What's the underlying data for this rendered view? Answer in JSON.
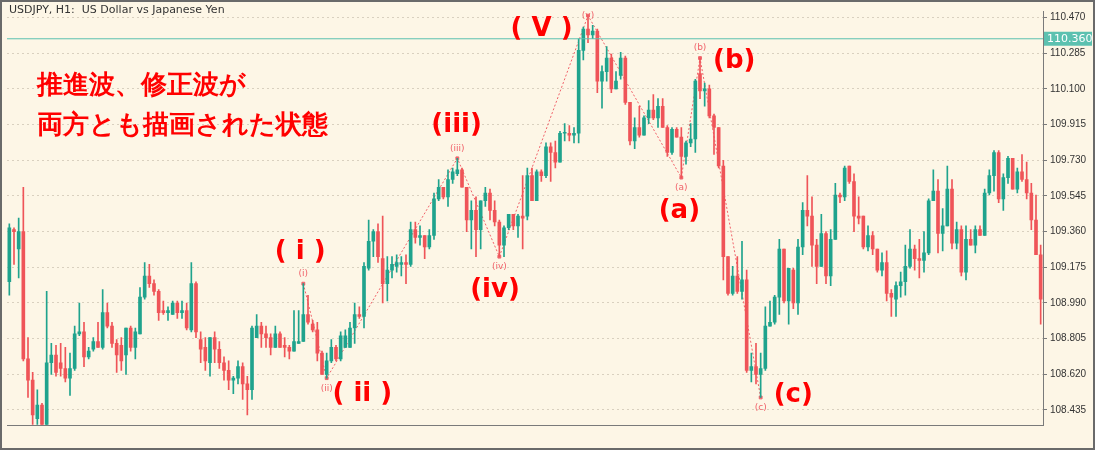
{
  "chart_data": {
    "type": "candlestick",
    "title": "USDJPY, H1:  US Dollar vs Japanese Yen",
    "subtitle": "推進波、修正波が両方とも描画された状態",
    "categories": [
      null,
      null,
      null,
      null,
      null,
      null,
      null,
      null,
      null,
      null,
      null,
      null,
      null,
      null,
      null,
      null,
      null,
      null,
      null,
      null,
      null,
      null,
      null,
      null,
      null,
      null,
      null,
      null,
      null,
      null,
      null,
      null,
      null,
      null,
      null,
      null,
      null,
      null,
      null,
      null,
      null,
      null,
      null,
      null,
      null,
      null,
      null,
      null,
      null,
      null,
      null,
      null,
      null,
      null,
      null,
      null,
      null,
      null,
      null,
      null,
      null,
      null,
      null,
      null,
      null,
      null,
      null,
      null,
      null,
      null,
      null,
      null,
      null,
      null,
      null,
      null,
      null,
      null,
      null,
      null,
      null,
      null,
      null,
      null,
      null,
      null,
      null,
      null,
      null,
      null,
      null,
      null,
      null,
      null,
      null,
      null,
      null,
      null,
      null,
      null,
      null,
      null,
      null,
      null,
      null,
      null,
      null,
      null,
      null,
      null,
      null,
      null,
      null,
      null,
      null,
      null,
      null,
      null,
      null,
      null,
      null,
      null,
      null,
      null,
      null,
      null,
      null,
      null,
      null,
      null,
      null,
      null,
      null,
      null,
      null,
      null,
      null,
      null,
      null,
      null,
      null,
      null,
      null,
      null,
      null,
      null,
      null,
      null,
      null,
      null,
      null,
      null,
      null,
      null,
      null,
      null,
      null,
      null,
      null,
      null,
      null,
      null,
      null,
      null,
      null,
      null,
      null,
      null,
      null,
      null,
      null,
      null,
      null,
      null,
      null,
      null,
      null,
      null,
      null,
      null,
      null,
      null,
      null,
      null,
      null,
      null,
      null,
      null,
      null,
      null,
      null,
      null,
      null,
      null,
      null,
      null,
      null,
      null,
      null,
      null,
      null,
      null,
      null,
      null,
      null,
      null,
      null,
      null,
      null,
      null,
      null,
      null,
      null,
      null,
      null,
      null,
      null,
      null,
      null,
      null,
      null,
      null
    ],
    "ohlc": [
      [
        109.1,
        109.4,
        109.03,
        109.38
      ],
      [
        109.37,
        109.38,
        109.19,
        109.36
      ],
      [
        109.27,
        109.43,
        109.12,
        109.36
      ],
      [
        109.36,
        109.59,
        108.69,
        108.7
      ],
      [
        108.7,
        108.81,
        108.5,
        108.59
      ],
      [
        108.59,
        108.63,
        108.36,
        108.41
      ],
      [
        108.39,
        108.54,
        108.36,
        108.46
      ],
      [
        108.46,
        108.47,
        108.36,
        108.36
      ],
      [
        108.36,
        109.05,
        108.36,
        108.68
      ],
      [
        108.68,
        108.78,
        108.62,
        108.72
      ],
      [
        108.72,
        108.77,
        108.61,
        108.63
      ],
      [
        108.68,
        108.78,
        108.61,
        108.65
      ],
      [
        108.65,
        108.76,
        108.58,
        108.6
      ],
      [
        108.6,
        108.73,
        108.51,
        108.65
      ],
      [
        108.65,
        108.87,
        108.64,
        108.83
      ],
      [
        108.83,
        108.99,
        108.82,
        108.84
      ],
      [
        108.84,
        108.89,
        108.66,
        108.71
      ],
      [
        108.71,
        108.76,
        108.7,
        108.74
      ],
      [
        108.75,
        108.81,
        108.74,
        108.79
      ],
      [
        108.79,
        108.89,
        108.76,
        108.76
      ],
      [
        108.76,
        109.06,
        108.75,
        108.94
      ],
      [
        108.94,
        108.99,
        108.86,
        108.87
      ],
      [
        108.87,
        108.89,
        108.76,
        108.78
      ],
      [
        108.78,
        108.8,
        108.63,
        108.72
      ],
      [
        108.77,
        108.81,
        108.64,
        108.69
      ],
      [
        108.72,
        108.86,
        108.62,
        108.86
      ],
      [
        108.86,
        108.87,
        108.74,
        108.76
      ],
      [
        108.76,
        108.86,
        108.7,
        108.84
      ],
      [
        108.83,
        109.07,
        108.83,
        109.02
      ],
      [
        109.02,
        109.2,
        109.01,
        109.13
      ],
      [
        109.13,
        109.19,
        109.07,
        109.09
      ],
      [
        109.09,
        109.11,
        109.03,
        109.05
      ],
      [
        109.05,
        109.06,
        108.9,
        108.94
      ],
      [
        108.95,
        109.0,
        108.93,
        108.94
      ],
      [
        108.94,
        108.97,
        108.9,
        108.95
      ],
      [
        108.93,
        109.0,
        108.93,
        108.99
      ],
      [
        108.99,
        109.0,
        108.91,
        108.94
      ],
      [
        108.94,
        109.0,
        108.91,
        108.95
      ],
      [
        108.95,
        108.99,
        108.85,
        108.86
      ],
      [
        108.85,
        109.2,
        108.84,
        109.09
      ],
      [
        109.09,
        109.1,
        108.81,
        108.84
      ],
      [
        108.8,
        108.84,
        108.68,
        108.75
      ],
      [
        108.76,
        108.81,
        108.64,
        108.69
      ],
      [
        108.68,
        108.81,
        108.61,
        108.81
      ],
      [
        108.81,
        108.84,
        108.68,
        108.75
      ],
      [
        108.75,
        108.79,
        108.65,
        108.68
      ],
      [
        108.68,
        108.71,
        108.59,
        108.64
      ],
      [
        108.64,
        108.69,
        108.54,
        108.59
      ],
      [
        108.59,
        108.61,
        108.52,
        108.6
      ],
      [
        108.6,
        108.69,
        108.57,
        108.66
      ],
      [
        108.66,
        108.68,
        108.49,
        108.57
      ],
      [
        108.57,
        108.61,
        108.41,
        108.54
      ],
      [
        108.54,
        108.87,
        108.49,
        108.86
      ],
      [
        108.81,
        108.93,
        108.81,
        108.87
      ],
      [
        108.87,
        108.89,
        108.76,
        108.83
      ],
      [
        108.83,
        108.87,
        108.76,
        108.81
      ],
      [
        108.81,
        108.83,
        108.72,
        108.76
      ],
      [
        108.76,
        108.87,
        108.76,
        108.83
      ],
      [
        108.83,
        108.84,
        108.76,
        108.76
      ],
      [
        108.77,
        108.81,
        108.71,
        108.76
      ],
      [
        108.76,
        108.77,
        108.7,
        108.74
      ],
      [
        108.74,
        108.95,
        108.74,
        108.79
      ],
      [
        108.78,
        108.95,
        108.78,
        108.79
      ],
      [
        108.79,
        109.09,
        108.79,
        108.93
      ],
      [
        108.93,
        109.03,
        108.88,
        108.89
      ],
      [
        108.88,
        108.9,
        108.84,
        108.85
      ],
      [
        108.85,
        108.89,
        108.69,
        108.73
      ],
      [
        108.73,
        108.74,
        108.62,
        108.62
      ],
      [
        108.62,
        108.73,
        108.6,
        108.69
      ],
      [
        108.69,
        108.8,
        108.68,
        108.76
      ],
      [
        108.76,
        108.77,
        108.69,
        108.7
      ],
      [
        108.7,
        108.84,
        108.69,
        108.82
      ],
      [
        108.76,
        108.85,
        108.76,
        108.82
      ],
      [
        108.76,
        108.89,
        108.76,
        108.86
      ],
      [
        108.86,
        108.99,
        108.78,
        108.93
      ],
      [
        108.93,
        108.97,
        108.91,
        108.92
      ],
      [
        108.92,
        109.2,
        108.86,
        109.18
      ],
      [
        109.17,
        109.42,
        109.16,
        109.31
      ],
      [
        109.31,
        109.37,
        109.23,
        109.36
      ],
      [
        109.36,
        109.4,
        109.2,
        109.23
      ],
      [
        109.22,
        109.44,
        108.99,
        109.09
      ],
      [
        109.09,
        109.23,
        109.0,
        109.16
      ],
      [
        109.16,
        109.23,
        109.12,
        109.19
      ],
      [
        109.18,
        109.24,
        109.15,
        109.2
      ],
      [
        109.19,
        109.23,
        109.13,
        109.2
      ],
      [
        109.2,
        109.24,
        109.09,
        109.19
      ],
      [
        109.19,
        109.41,
        109.18,
        109.37
      ],
      [
        109.37,
        109.41,
        109.3,
        109.33
      ],
      [
        109.33,
        109.39,
        109.29,
        109.34
      ],
      [
        109.34,
        109.34,
        109.22,
        109.28
      ],
      [
        109.28,
        109.37,
        109.27,
        109.34
      ],
      [
        109.34,
        109.56,
        109.32,
        109.53
      ],
      [
        109.53,
        109.63,
        109.52,
        109.59
      ],
      [
        109.59,
        109.59,
        109.53,
        109.54
      ],
      [
        109.54,
        109.68,
        109.49,
        109.63
      ],
      [
        109.63,
        109.69,
        109.61,
        109.67
      ],
      [
        109.66,
        109.74,
        109.65,
        109.68
      ],
      [
        109.68,
        109.69,
        109.59,
        109.59
      ],
      [
        109.59,
        109.59,
        109.36,
        109.42
      ],
      [
        109.42,
        109.52,
        109.27,
        109.47
      ],
      [
        109.47,
        109.54,
        109.23,
        109.37
      ],
      [
        109.37,
        109.52,
        109.27,
        109.52
      ],
      [
        109.52,
        109.59,
        109.49,
        109.56
      ],
      [
        109.56,
        109.58,
        109.42,
        109.47
      ],
      [
        109.47,
        109.52,
        109.39,
        109.41
      ],
      [
        109.41,
        109.42,
        109.23,
        109.29
      ],
      [
        109.29,
        109.39,
        109.23,
        109.38
      ],
      [
        109.38,
        109.45,
        109.37,
        109.45
      ],
      [
        109.45,
        109.45,
        109.37,
        109.39
      ],
      [
        109.39,
        109.45,
        109.33,
        109.44
      ],
      [
        109.44,
        109.65,
        109.27,
        109.43
      ],
      [
        109.44,
        109.69,
        109.42,
        109.65
      ],
      [
        109.65,
        109.69,
        109.52,
        109.52
      ],
      [
        109.52,
        109.68,
        109.52,
        109.67
      ],
      [
        109.67,
        109.68,
        109.62,
        109.65
      ],
      [
        109.65,
        109.82,
        109.64,
        109.8
      ],
      [
        109.8,
        109.82,
        109.62,
        109.77
      ],
      [
        109.77,
        109.83,
        109.69,
        109.72
      ],
      [
        109.72,
        109.88,
        109.72,
        109.87
      ],
      [
        109.87,
        109.92,
        109.83,
        109.87
      ],
      [
        109.87,
        109.91,
        109.83,
        109.86
      ],
      [
        109.86,
        109.9,
        109.82,
        109.87
      ],
      [
        109.87,
        110.36,
        109.82,
        110.3
      ],
      [
        110.3,
        110.42,
        110.25,
        110.41
      ],
      [
        110.41,
        110.48,
        110.34,
        110.38
      ],
      [
        110.38,
        110.43,
        110.36,
        110.4
      ],
      [
        110.4,
        110.41,
        110.08,
        110.14
      ],
      [
        110.14,
        110.22,
        110.0,
        110.19
      ],
      [
        110.19,
        110.32,
        110.14,
        110.26
      ],
      [
        110.26,
        110.28,
        110.08,
        110.1
      ],
      [
        110.1,
        110.19,
        110.1,
        110.14
      ],
      [
        110.17,
        110.29,
        110.15,
        110.26
      ],
      [
        110.26,
        110.27,
        110.02,
        110.03
      ],
      [
        110.03,
        110.03,
        109.81,
        109.83
      ],
      [
        109.83,
        109.95,
        109.79,
        109.9
      ],
      [
        109.9,
        110.01,
        109.85,
        109.86
      ],
      [
        109.86,
        109.96,
        109.86,
        109.95
      ],
      [
        109.95,
        110.04,
        109.92,
        109.99
      ],
      [
        109.99,
        110.07,
        109.94,
        109.95
      ],
      [
        109.95,
        110.05,
        109.9,
        110.01
      ],
      [
        110.01,
        110.05,
        109.9,
        109.9
      ],
      [
        109.9,
        109.91,
        109.75,
        109.77
      ],
      [
        109.77,
        109.9,
        109.76,
        109.89
      ],
      [
        109.89,
        109.9,
        109.85,
        109.85
      ],
      [
        109.85,
        109.9,
        109.64,
        109.75
      ],
      [
        109.75,
        109.83,
        109.71,
        109.82
      ],
      [
        109.82,
        109.92,
        109.8,
        109.84
      ],
      [
        109.84,
        110.15,
        109.77,
        110.14
      ],
      [
        110.18,
        110.26,
        110.05,
        110.09
      ],
      [
        110.09,
        110.13,
        110.01,
        110.1
      ],
      [
        110.1,
        110.12,
        109.95,
        109.96
      ],
      [
        109.96,
        109.97,
        109.76,
        109.9
      ],
      [
        109.9,
        109.9,
        109.69,
        109.7
      ],
      [
        109.7,
        109.73,
        109.11,
        109.23
      ],
      [
        109.23,
        109.23,
        109.03,
        109.04
      ],
      [
        109.04,
        109.18,
        109.03,
        109.13
      ],
      [
        109.13,
        109.23,
        109.04,
        109.05
      ],
      [
        109.05,
        109.31,
        109.01,
        109.11
      ],
      [
        109.11,
        109.16,
        108.63,
        108.64
      ],
      [
        108.64,
        108.73,
        108.58,
        108.66
      ],
      [
        108.66,
        108.78,
        108.57,
        108.62
      ],
      [
        108.62,
        108.73,
        108.5,
        108.65
      ],
      [
        108.65,
        108.97,
        108.64,
        108.87
      ],
      [
        108.87,
        109.0,
        108.87,
        108.89
      ],
      [
        108.89,
        109.03,
        108.88,
        109.02
      ],
      [
        109.02,
        109.32,
        108.93,
        109.27
      ],
      [
        109.27,
        109.27,
        108.99,
        109.0
      ],
      [
        109.0,
        109.17,
        108.88,
        109.17
      ],
      [
        109.16,
        109.17,
        108.96,
        108.99
      ],
      [
        108.99,
        109.32,
        108.93,
        109.28
      ],
      [
        109.28,
        109.51,
        109.24,
        109.47
      ],
      [
        109.47,
        109.65,
        109.39,
        109.44
      ],
      [
        109.44,
        109.54,
        109.18,
        109.29
      ],
      [
        109.29,
        109.32,
        109.09,
        109.18
      ],
      [
        109.18,
        109.45,
        109.18,
        109.35
      ],
      [
        109.35,
        109.36,
        109.09,
        109.13
      ],
      [
        109.13,
        109.37,
        109.08,
        109.32
      ],
      [
        109.32,
        109.61,
        109.32,
        109.55
      ],
      [
        109.55,
        109.56,
        109.51,
        109.54
      ],
      [
        109.54,
        109.7,
        109.52,
        109.69
      ],
      [
        109.7,
        109.7,
        109.61,
        109.62
      ],
      [
        109.62,
        109.66,
        109.36,
        109.44
      ],
      [
        109.44,
        109.54,
        109.4,
        109.43
      ],
      [
        109.44,
        109.44,
        109.27,
        109.28
      ],
      [
        109.28,
        109.39,
        109.26,
        109.34
      ],
      [
        109.34,
        109.36,
        109.24,
        109.27
      ],
      [
        109.27,
        109.27,
        109.15,
        109.16
      ],
      [
        109.16,
        109.25,
        109.13,
        109.2
      ],
      [
        109.2,
        109.26,
        109.0,
        109.04
      ],
      [
        109.04,
        109.06,
        108.92,
        109.02
      ],
      [
        109.01,
        109.1,
        108.92,
        109.08
      ],
      [
        109.08,
        109.15,
        109.02,
        109.1
      ],
      [
        109.1,
        109.29,
        109.03,
        109.18
      ],
      [
        109.18,
        109.37,
        109.17,
        109.27
      ],
      [
        109.27,
        109.29,
        109.16,
        109.22
      ],
      [
        109.22,
        109.32,
        109.12,
        109.21
      ],
      [
        109.21,
        109.36,
        109.15,
        109.25
      ],
      [
        109.25,
        109.53,
        109.24,
        109.52
      ],
      [
        109.52,
        109.68,
        109.52,
        109.57
      ],
      [
        109.57,
        109.63,
        109.25,
        109.35
      ],
      [
        109.35,
        109.48,
        109.26,
        109.39
      ],
      [
        109.39,
        109.7,
        109.39,
        109.58
      ],
      [
        109.58,
        109.63,
        109.27,
        109.3
      ],
      [
        109.3,
        109.41,
        109.27,
        109.37
      ],
      [
        109.37,
        109.39,
        109.13,
        109.15
      ],
      [
        109.15,
        109.39,
        109.11,
        109.32
      ],
      [
        109.32,
        109.37,
        109.29,
        109.29
      ],
      [
        109.29,
        109.39,
        109.25,
        109.37
      ],
      [
        109.37,
        109.39,
        109.34,
        109.34
      ],
      [
        109.34,
        109.58,
        109.34,
        109.56
      ],
      [
        109.56,
        109.68,
        109.55,
        109.65
      ],
      [
        109.65,
        109.78,
        109.57,
        109.77
      ],
      [
        109.77,
        109.78,
        109.51,
        109.53
      ],
      [
        109.53,
        109.66,
        109.47,
        109.64
      ],
      [
        109.64,
        109.75,
        109.61,
        109.74
      ],
      [
        109.74,
        109.74,
        109.58,
        109.58
      ],
      [
        109.58,
        109.69,
        109.56,
        109.67
      ],
      [
        109.67,
        109.76,
        109.62,
        109.63
      ],
      [
        109.63,
        109.72,
        109.53,
        109.56
      ],
      [
        109.56,
        109.61,
        109.37,
        109.42
      ],
      [
        109.42,
        109.55,
        109.24,
        109.24
      ],
      [
        109.24,
        109.29,
        108.88,
        109.01
      ]
    ],
    "colors": [
      "#1fa38d",
      "#ef5458",
      "#1fa38d",
      "#ef5458",
      "#ef5458",
      "#ef5458",
      "#1fa38d",
      "#ef5458",
      "#1fa38d",
      "#1fa38d",
      "#ef5458",
      "#ef5458",
      "#ef5458",
      "#1fa38d",
      "#1fa38d",
      "#1fa38d",
      "#ef5458",
      "#1fa38d",
      "#1fa38d",
      "#ef5458",
      "#1fa38d",
      "#ef5458",
      "#ef5458",
      "#ef5458",
      "#ef5458",
      "#1fa38d",
      "#ef5458",
      "#1fa38d",
      "#1fa38d",
      "#1fa38d",
      "#ef5458",
      "#ef5458",
      "#ef5458",
      "#ef5458",
      "#1fa38d",
      "#1fa38d",
      "#ef5458",
      "#1fa38d",
      "#ef5458",
      "#1fa38d",
      "#ef5458",
      "#ef5458",
      "#ef5458",
      "#1fa38d",
      "#ef5458",
      "#ef5458",
      "#ef5458",
      "#ef5458",
      "#1fa38d",
      "#1fa38d",
      "#ef5458",
      "#ef5458",
      "#1fa38d",
      "#1fa38d",
      "#ef5458",
      "#ef5458",
      "#ef5458",
      "#1fa38d",
      "#ef5458",
      "#ef5458",
      "#ef5458",
      "#1fa38d",
      "#1fa38d",
      "#1fa38d",
      "#ef5458",
      "#ef5458",
      "#ef5458",
      "#ef5458",
      "#1fa38d",
      "#1fa38d",
      "#ef5458",
      "#1fa38d",
      "#1fa38d",
      "#1fa38d",
      "#1fa38d",
      "#ef5458",
      "#1fa38d",
      "#1fa38d",
      "#1fa38d",
      "#ef5458",
      "#ef5458",
      "#1fa38d",
      "#1fa38d",
      "#1fa38d",
      "#1fa38d",
      "#ef5458",
      "#1fa38d",
      "#ef5458",
      "#1fa38d",
      "#ef5458",
      "#1fa38d",
      "#1fa38d",
      "#1fa38d",
      "#ef5458",
      "#1fa38d",
      "#1fa38d",
      "#1fa38d",
      "#ef5458",
      "#ef5458",
      "#1fa38d",
      "#ef5458",
      "#1fa38d",
      "#1fa38d",
      "#ef5458",
      "#ef5458",
      "#ef5458",
      "#1fa38d",
      "#1fa38d",
      "#ef5458",
      "#1fa38d",
      "#ef5458",
      "#1fa38d",
      "#ef5458",
      "#1fa38d",
      "#ef5458",
      "#1fa38d",
      "#ef5458",
      "#ef5458",
      "#1fa38d",
      "#1fa38d",
      "#ef5458",
      "#1fa38d",
      "#1fa38d",
      "#1fa38d",
      "#ef5458",
      "#1fa38d",
      "#ef5458",
      "#1fa38d",
      "#1fa38d",
      "#ef5458",
      "#1fa38d",
      "#1fa38d",
      "#ef5458",
      "#ef5458",
      "#1fa38d",
      "#ef5458",
      "#1fa38d",
      "#1fa38d",
      "#ef5458",
      "#1fa38d",
      "#ef5458",
      "#ef5458",
      "#1fa38d",
      "#ef5458",
      "#ef5458",
      "#1fa38d",
      "#1fa38d",
      "#1fa38d",
      "#ef5458",
      "#1fa38d",
      "#ef5458",
      "#ef5458",
      "#ef5458",
      "#ef5458",
      "#ef5458",
      "#1fa38d",
      "#ef5458",
      "#1fa38d",
      "#ef5458",
      "#1fa38d",
      "#ef5458",
      "#1fa38d",
      "#1fa38d",
      "#1fa38d",
      "#1fa38d",
      "#1fa38d",
      "#ef5458",
      "#1fa38d",
      "#ef5458",
      "#1fa38d",
      "#1fa38d",
      "#ef5458",
      "#ef5458",
      "#ef5458",
      "#1fa38d",
      "#ef5458",
      "#1fa38d",
      "#1fa38d",
      "#ef5458",
      "#1fa38d",
      "#ef5458",
      "#ef5458",
      "#ef5458",
      "#ef5458",
      "#1fa38d",
      "#ef5458",
      "#ef5458",
      "#1fa38d",
      "#ef5458",
      "#ef5458",
      "#1fa38d",
      "#1fa38d",
      "#1fa38d",
      "#1fa38d",
      "#ef5458",
      "#ef5458",
      "#1fa38d",
      "#1fa38d",
      "#1fa38d",
      "#ef5458",
      "#1fa38d",
      "#1fa38d",
      "#ef5458",
      "#1fa38d",
      "#ef5458",
      "#1fa38d",
      "#ef5458",
      "#1fa38d",
      "#ef5458",
      "#1fa38d",
      "#1fa38d",
      "#1fa38d",
      "#ef5458",
      "#1fa38d",
      "#1fa38d",
      "#ef5458",
      "#1fa38d",
      "#ef5458",
      "#ef5458",
      "#ef5458",
      "#ef5458",
      "#ef5458"
    ],
    "series": [
      {
        "type": "line",
        "color": "#f0626a",
        "line_style": "dotted",
        "marker": "square",
        "values": [
          null,
          null,
          null,
          null,
          null,
          null,
          null,
          null,
          null,
          null,
          null,
          null,
          null,
          null,
          null,
          null,
          null,
          null,
          null,
          null,
          null,
          null,
          null,
          null,
          null,
          null,
          null,
          null,
          null,
          null,
          null,
          null,
          null,
          null,
          null,
          null,
          null,
          null,
          null,
          null,
          null,
          null,
          null,
          null,
          null,
          null,
          null,
          null,
          null,
          null,
          null,
          null,
          null,
          null,
          null,
          null,
          null,
          null,
          null,
          null,
          null,
          null,
          null,
          109.09,
          null,
          null,
          null,
          null,
          108.6,
          null,
          null,
          null,
          null,
          null,
          null,
          null,
          null,
          null,
          null,
          null,
          null,
          null,
          null,
          null,
          null,
          null,
          null,
          null,
          null,
          null,
          null,
          null,
          null,
          null,
          null,
          null,
          109.74,
          null,
          null,
          null,
          null,
          null,
          null,
          null,
          null,
          109.23,
          null,
          null,
          null,
          null,
          null,
          null,
          null,
          null,
          null,
          null,
          null,
          null,
          null,
          null,
          null,
          null,
          null,
          null,
          110.48,
          null,
          null,
          null,
          null,
          null,
          null,
          null,
          null,
          null,
          null,
          null,
          null,
          null,
          null,
          null,
          null,
          null,
          null,
          null,
          109.64,
          null,
          null,
          null,
          110.26,
          null,
          null,
          null,
          null,
          null,
          null,
          null,
          null,
          null,
          null,
          null,
          null,
          108.5,
          null,
          null,
          null,
          null,
          null,
          null,
          null,
          null,
          null,
          null,
          null,
          null,
          null,
          null,
          null,
          null,
          null,
          null,
          null,
          null,
          null,
          null,
          null,
          null,
          null,
          null,
          null,
          null,
          null,
          null,
          null,
          null,
          null,
          null,
          null,
          null,
          null,
          null,
          null,
          null,
          null,
          null,
          null,
          null,
          null,
          null,
          null,
          null,
          null,
          null,
          null,
          null,
          null,
          null,
          null,
          null,
          null,
          null,
          null,
          null
        ],
        "value_labels": [
          null,
          null,
          null,
          null,
          null,
          null,
          null,
          null,
          null,
          null,
          null,
          null,
          null,
          null,
          null,
          null,
          null,
          null,
          null,
          null,
          null,
          null,
          null,
          null,
          null,
          null,
          null,
          null,
          null,
          null,
          null,
          null,
          null,
          null,
          null,
          null,
          null,
          null,
          null,
          null,
          null,
          null,
          null,
          null,
          null,
          null,
          null,
          null,
          null,
          null,
          null,
          null,
          null,
          null,
          null,
          null,
          null,
          null,
          null,
          null,
          null,
          null,
          null,
          "(i)",
          null,
          null,
          null,
          null,
          "(ii)",
          null,
          null,
          null,
          null,
          null,
          null,
          null,
          null,
          null,
          null,
          null,
          null,
          null,
          null,
          null,
          null,
          null,
          null,
          null,
          null,
          null,
          null,
          null,
          null,
          null,
          null,
          null,
          "(iii)",
          null,
          null,
          null,
          null,
          null,
          null,
          null,
          null,
          "(iv)",
          null,
          null,
          null,
          null,
          null,
          null,
          null,
          null,
          null,
          null,
          null,
          null,
          null,
          null,
          null,
          null,
          null,
          null,
          "(v)",
          null,
          null,
          null,
          null,
          null,
          null,
          null,
          null,
          null,
          null,
          null,
          null,
          null,
          null,
          null,
          null,
          null,
          null,
          null,
          "(a)",
          null,
          null,
          null,
          "(b)",
          null,
          null,
          null,
          null,
          null,
          null,
          null,
          null,
          null,
          null,
          null,
          null,
          "(c)",
          null,
          null,
          null,
          null,
          null,
          null,
          null,
          null,
          null,
          null,
          null,
          null,
          null,
          null,
          null,
          null,
          null,
          null,
          null,
          null,
          null,
          null,
          null,
          null,
          null,
          null,
          null,
          null,
          null,
          null,
          null,
          null,
          null,
          null,
          null,
          null,
          null,
          null,
          null,
          null,
          null,
          null,
          null,
          null,
          null,
          null,
          null,
          null,
          null,
          null,
          null,
          null,
          null,
          null,
          null,
          null,
          null,
          null,
          null,
          null
        ]
      }
    ],
    "ylim": [
      108.354,
      110.504
    ],
    "yticks": [
      {
        "value": 110.47,
        "label": "110.470"
      },
      110.285,
      {
        "value": 110.1,
        "label": "110.100"
      },
      109.915,
      {
        "value": 109.73,
        "label": "109.730"
      },
      109.545,
      {
        "value": 109.36,
        "label": "109.360"
      },
      109.175,
      {
        "value": 108.99,
        "label": "108.990"
      },
      108.805,
      {
        "value": 108.62,
        "label": "108.620"
      },
      108.435
    ],
    "grid": "y",
    "legend": false,
    "ref_lines": [
      {
        "axis": "y",
        "value": 110.36,
        "label": "110.360",
        "color": "#5cc1b0"
      }
    ],
    "annotations": [
      "( i )",
      "( ii )",
      "(iii)",
      "(iv)",
      "( V )",
      "(a)",
      "(b)",
      "(c)"
    ]
  }
}
